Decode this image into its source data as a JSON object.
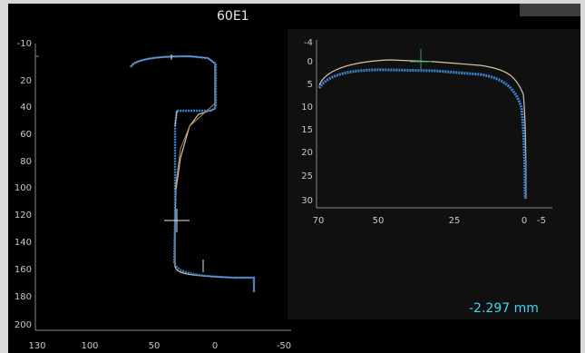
{
  "title": "60E1",
  "readout": "-2.297 mm",
  "colors": {
    "background": "#000000",
    "measured_profile": "#3a86d6",
    "reference_profile": "#d8c2a8",
    "readout": "#3fd7ee",
    "marker": "#2fa84f"
  },
  "left_axis": {
    "y_ticks": [
      "-10",
      "20",
      "40",
      "60",
      "80",
      "100",
      "120",
      "140",
      "160",
      "180",
      "200"
    ],
    "x_ticks": [
      "130",
      "100",
      "50",
      "0",
      "-50"
    ]
  },
  "right_axis": {
    "y_ticks": [
      "-4",
      "0",
      "5",
      "10",
      "15",
      "20",
      "25",
      "30"
    ],
    "x_ticks": [
      "70",
      "50",
      "25",
      "0",
      "-5"
    ]
  }
}
